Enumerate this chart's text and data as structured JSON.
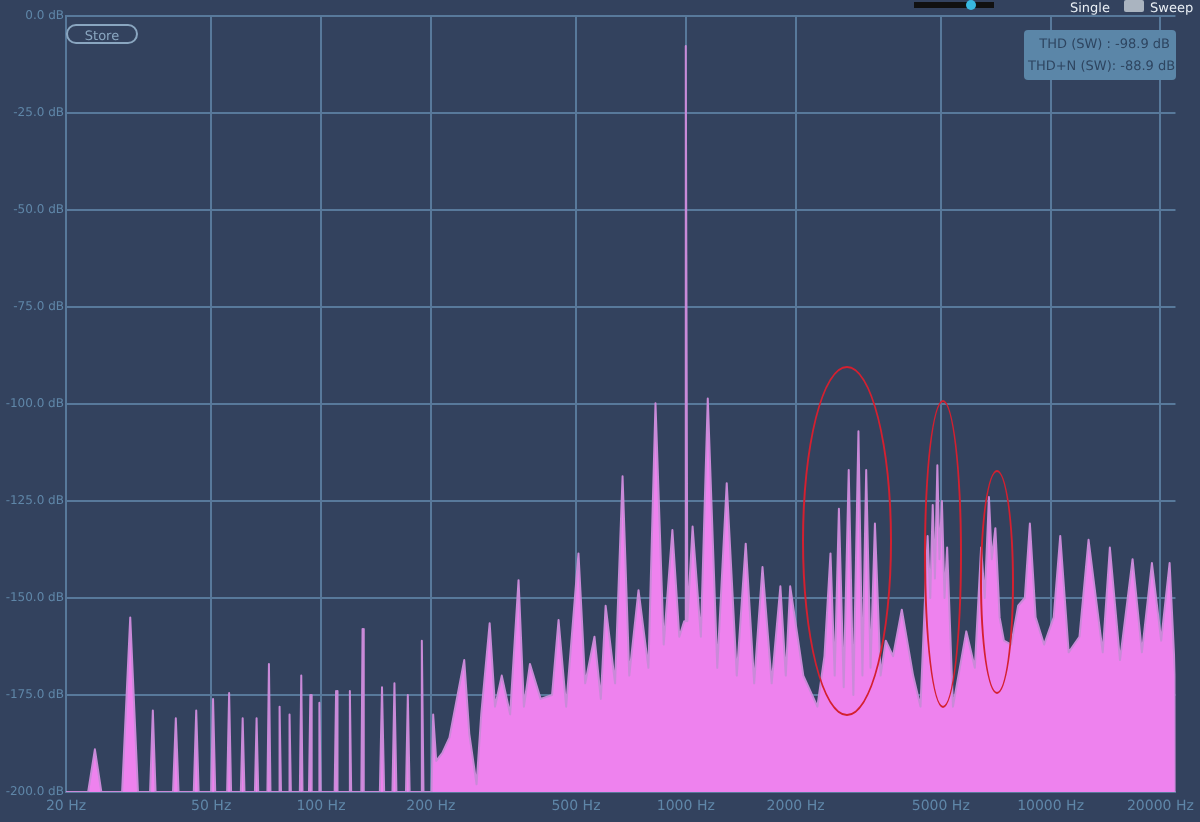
{
  "chart_data": {
    "type": "area",
    "xlim": [
      20,
      22000
    ],
    "ylim": [
      -200,
      0
    ],
    "log": "x",
    "grid": true,
    "legend": false,
    "marker": "none",
    "xticks": [
      {
        "value": 20,
        "label": "20 Hz"
      },
      {
        "value": 50,
        "label": "50 Hz"
      },
      {
        "value": 100,
        "label": "100 Hz"
      },
      {
        "value": 200,
        "label": "200 Hz"
      },
      {
        "value": 500,
        "label": "500 Hz"
      },
      {
        "value": 1000,
        "label": "1000 Hz"
      },
      {
        "value": 2000,
        "label": "2000 Hz"
      },
      {
        "value": 5000,
        "label": "5000 Hz"
      },
      {
        "value": 10000,
        "label": "10000 Hz"
      },
      {
        "value": 20000,
        "label": "20000 Hz"
      }
    ],
    "yticks": [
      {
        "value": 0,
        "label": "0.0 dB"
      },
      {
        "value": -25,
        "label": "-25.0 dB"
      },
      {
        "value": -50,
        "label": "-50.0 dB"
      },
      {
        "value": -75,
        "label": "-75.0 dB"
      },
      {
        "value": -100,
        "label": "-100.0 dB"
      },
      {
        "value": -125,
        "label": "-125.0 dB"
      },
      {
        "value": -150,
        "label": "-150.0 dB"
      },
      {
        "value": -175,
        "label": "-175.0 dB"
      },
      {
        "value": -200,
        "label": "-200.0 dB"
      }
    ],
    "annotations": [
      "Store",
      "THD (SW) : -98.9 dB",
      "THD+N (SW): -88.9 dB",
      "Single",
      "Sweep"
    ],
    "series": [
      {
        "color": "#ee82ee",
        "x": [
          20,
          23,
          24,
          25,
          28.5,
          30,
          31.5,
          34,
          34.6,
          35.2,
          39.3,
          40,
          40.7,
          44.8,
          45.5,
          46.2,
          50,
          50.6,
          51.3,
          55.3,
          56,
          56.7,
          60.3,
          61,
          61.7,
          65.9,
          66.6,
          67.3,
          71.3,
          72,
          72.7,
          76.3,
          77,
          77.7,
          81.3,
          82,
          82.7,
          87.5,
          88.3,
          89,
          92.7,
          93.5,
          94.3,
          98.2,
          99,
          99.8,
          109,
          110,
          111,
          119,
          120,
          121,
          129,
          130,
          131,
          145,
          147,
          149,
          157,
          159,
          161,
          171,
          173,
          175,
          187,
          189,
          191,
          201,
          203,
          207,
          215,
          225,
          247,
          255,
          267,
          275,
          290,
          300,
          313,
          330,
          348,
          360,
          374,
          400,
          430,
          448,
          470,
          508,
          530,
          562,
          585,
          603,
          640,
          671,
          700,
          742,
          790,
          826,
          870,
          919,
          960,
          990,
          1000,
          1010,
          1044,
          1100,
          1149,
          1220,
          1295,
          1380,
          1460,
          1540,
          1623,
          1720,
          1817,
          1880,
          1933,
          2100,
          2295,
          2400,
          2493,
          2560,
          2629,
          2710,
          2797,
          2880,
          2974,
          3050,
          3123,
          3210,
          3300,
          3420,
          3534,
          3700,
          3910,
          4200,
          4400,
          4602,
          4680,
          4753,
          4820,
          4894,
          4960,
          5037,
          5120,
          5206,
          5400,
          5875,
          6200,
          6450,
          6600,
          6777,
          6900,
          7058,
          7250,
          7450,
          7800,
          8150,
          8500,
          8776,
          9100,
          9600,
          10200,
          10630,
          11210,
          12000,
          12710,
          13900,
          14540,
          15500,
          16780,
          17800,
          18960,
          20100,
          21200,
          21940,
          22000
        ],
        "values": [
          -200,
          -200,
          -189,
          -200,
          -200,
          -155,
          -200,
          -200,
          -179,
          -200,
          -200,
          -181,
          -200,
          -200,
          -179,
          -200,
          -200,
          -176,
          -200,
          -200,
          -174.5,
          -200,
          -200,
          -181,
          -200,
          -200,
          -181,
          -200,
          -200,
          -167,
          -200,
          -200,
          -178,
          -200,
          -200,
          -180,
          -200,
          -200,
          -170,
          -200,
          -200,
          -175,
          -200,
          -200,
          -177,
          -200,
          -200,
          -174,
          -200,
          -200,
          -174,
          -200,
          -200,
          -158,
          -200,
          -200,
          -173,
          -200,
          -200,
          -172,
          -200,
          -200,
          -175,
          -200,
          -200,
          -161,
          -200,
          -200,
          -180,
          -192,
          -190,
          -186,
          -166,
          -185,
          -198,
          -180,
          -156.5,
          -178,
          -170,
          -180,
          -145.4,
          -178,
          -167,
          -176,
          -175,
          -155.7,
          -178,
          -138.5,
          -172,
          -160,
          -176,
          -152,
          -172,
          -118.6,
          -170,
          -148,
          -168,
          -99.8,
          -162,
          -132.5,
          -160,
          -156,
          -7.7,
          -156,
          -131.6,
          -160,
          -98.6,
          -168,
          -120.4,
          -170,
          -136,
          -172,
          -142,
          -172,
          -147,
          -170,
          -147,
          -170,
          -178,
          -165,
          -138.5,
          -170,
          -127,
          -173,
          -117,
          -175,
          -107,
          -170,
          -117,
          -168,
          -130.8,
          -170,
          -161,
          -165,
          -153,
          -170,
          -178,
          -134,
          -150,
          -126,
          -145,
          -115.8,
          -140,
          -125,
          -150,
          -137,
          -178,
          -158.6,
          -168,
          -137,
          -150,
          -124,
          -140,
          -132,
          -155,
          -161,
          -162,
          -152,
          -150,
          -130.8,
          -155,
          -162,
          -155,
          -134,
          -164,
          -160,
          -135,
          -164,
          -137,
          -166,
          -140,
          -164,
          -141,
          -161,
          -141,
          -170,
          -200
        ]
      }
    ]
  }
}
